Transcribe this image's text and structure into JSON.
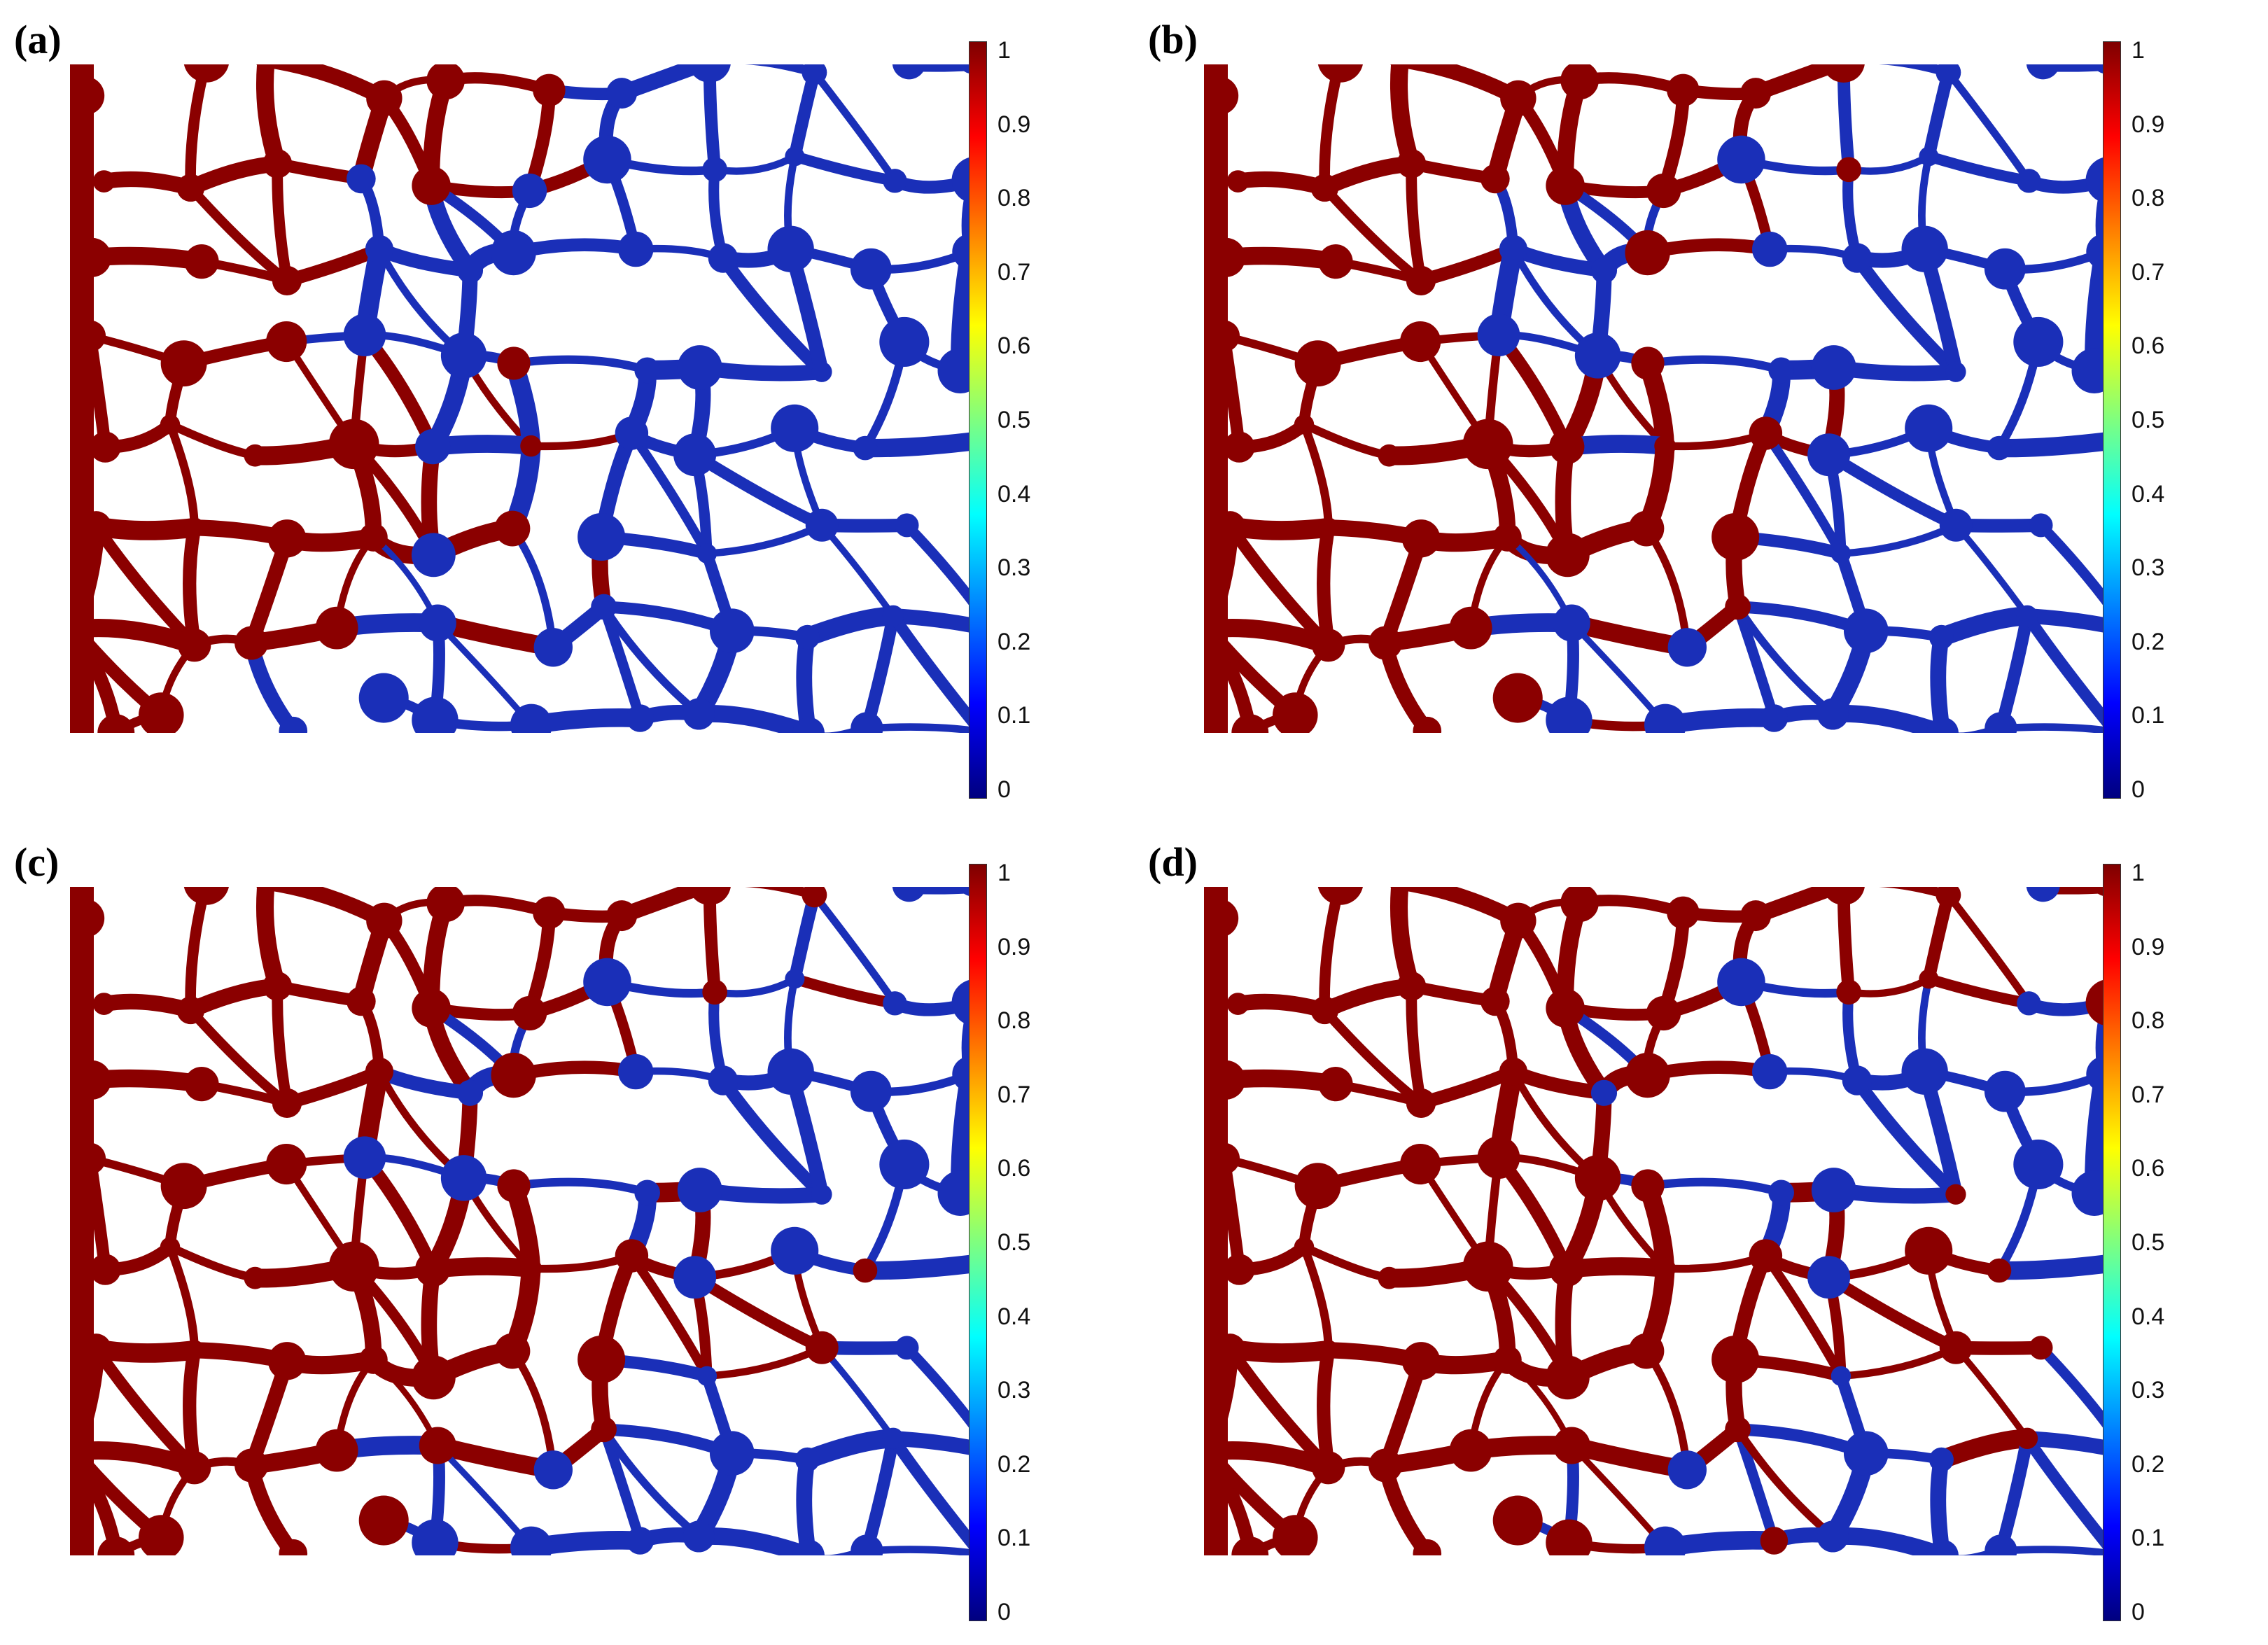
{
  "panels": [
    {
      "label": "(a)",
      "colorbar_ticks": [
        "1",
        "0.9",
        "0.8",
        "0.7",
        "0.6",
        "0.5",
        "0.4",
        "0.3",
        "0.2",
        "0.1",
        "0"
      ],
      "fill_fraction": 0.5
    },
    {
      "label": "(b)",
      "colorbar_ticks": [
        "1",
        "0.9",
        "0.8",
        "0.7",
        "0.6",
        "0.5",
        "0.4",
        "0.3",
        "0.2",
        "0.1",
        "0"
      ],
      "fill_fraction": 0.62
    },
    {
      "label": "(c)",
      "colorbar_ticks": [
        "1",
        "0.9",
        "0.8",
        "0.7",
        "0.6",
        "0.5",
        "0.4",
        "0.3",
        "0.2",
        "0.1",
        "0"
      ],
      "fill_fraction": 0.74
    },
    {
      "label": "(d)",
      "colorbar_ticks": [
        "1",
        "0.9",
        "0.8",
        "0.7",
        "0.6",
        "0.5",
        "0.4",
        "0.3",
        "0.2",
        "0.1",
        "0"
      ],
      "fill_fraction": 0.88
    }
  ],
  "colors": {
    "high": "#8b0000",
    "low": "#1a2fb8",
    "ramp": [
      "#00007f",
      "#0000ff",
      "#007fff",
      "#00ffff",
      "#7fff7f",
      "#ffff00",
      "#ff7f00",
      "#ff0000",
      "#7f0000"
    ]
  }
}
